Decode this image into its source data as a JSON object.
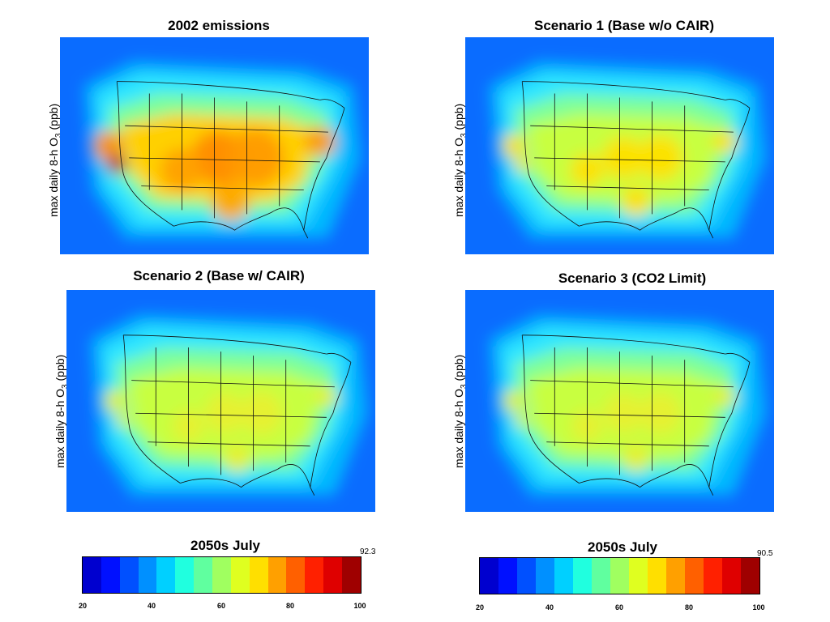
{
  "panels": [
    {
      "title": "2002 emissions",
      "ylabel_pre": "max daily 8-h O",
      "ylabel_sub": "3",
      "ylabel_post": " (ppb)",
      "intensity": 1.0
    },
    {
      "title": "Scenario 1 (Base w/o CAIR)",
      "ylabel_pre": "max daily 8-h O",
      "ylabel_sub": "3",
      "ylabel_post": " (ppb)",
      "intensity": 0.55
    },
    {
      "title": "Scenario 2 (Base w/ CAIR)",
      "ylabel_pre": "max daily 8-h O",
      "ylabel_sub": "3",
      "ylabel_post": " (ppb)",
      "intensity": 0.45
    },
    {
      "title": "Scenario 3 (CO2 Limit)",
      "ylabel_pre": "max daily 8-h O",
      "ylabel_sub": "3",
      "ylabel_post": " (ppb)",
      "intensity": 0.42
    }
  ],
  "colorbars": [
    {
      "title": "2050s July",
      "max_label": "92.3",
      "ticks": [
        "20",
        "40",
        "60",
        "80",
        "100"
      ]
    },
    {
      "title": "2050s July",
      "max_label": "90.5",
      "ticks": [
        "20",
        "40",
        "60",
        "80",
        "100"
      ]
    }
  ],
  "palette": [
    "#00008f",
    "#0000cf",
    "#0010ff",
    "#0050ff",
    "#0090ff",
    "#00d0ff",
    "#20ffdf",
    "#60ff9f",
    "#a0ff60",
    "#dfff20",
    "#ffdf00",
    "#ffa000",
    "#ff6000",
    "#ff2000",
    "#df0000",
    "#9f0000",
    "#7f0000"
  ],
  "scale": {
    "min": 20,
    "max": 100
  }
}
